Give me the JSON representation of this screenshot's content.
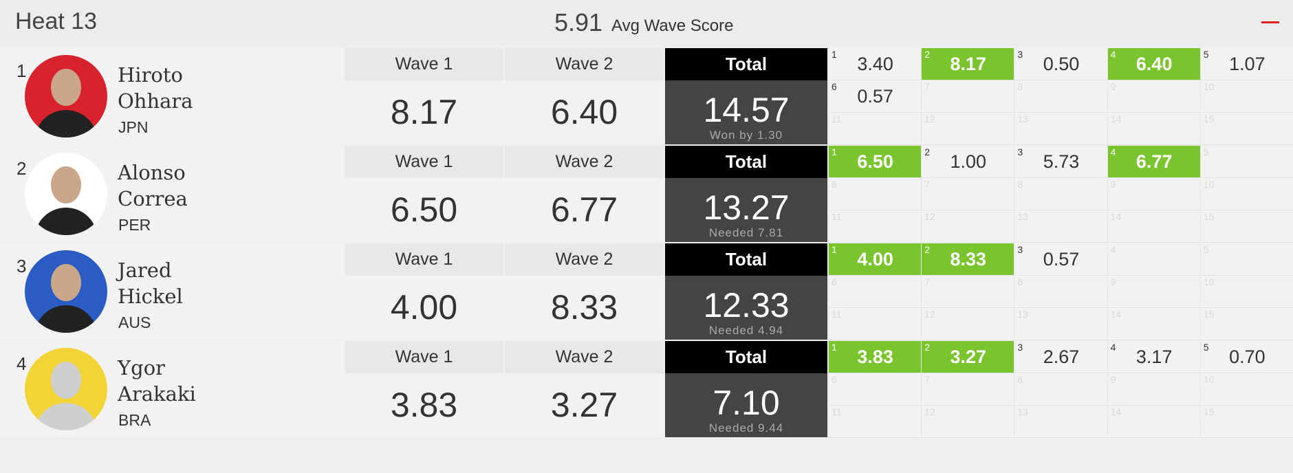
{
  "header": {
    "title": "Heat 13",
    "avg_score": "5.91",
    "avg_label": "Avg Wave Score"
  },
  "column_labels": {
    "wave1": "Wave 1",
    "wave2": "Wave 2",
    "total": "Total"
  },
  "grid_numbers": [
    1,
    2,
    3,
    4,
    5,
    6,
    7,
    8,
    9,
    10,
    11,
    12,
    13,
    14,
    15
  ],
  "surfers": [
    {
      "rank": 1,
      "first_name": "Hiroto",
      "last_name": "Ohhara",
      "country": "JPN",
      "wave1": "8.17",
      "wave2": "6.40",
      "total": "14.57",
      "note": "Won by 1.30",
      "waves": [
        {
          "score": "3.40",
          "counted": false
        },
        {
          "score": "8.17",
          "counted": true
        },
        {
          "score": "0.50",
          "counted": false
        },
        {
          "score": "6.40",
          "counted": true
        },
        {
          "score": "1.07",
          "counted": false
        },
        {
          "score": "0.57",
          "counted": false
        }
      ]
    },
    {
      "rank": 2,
      "first_name": "Alonso",
      "last_name": "Correa",
      "country": "PER",
      "wave1": "6.50",
      "wave2": "6.77",
      "total": "13.27",
      "note": "Needed 7.81",
      "waves": [
        {
          "score": "6.50",
          "counted": true
        },
        {
          "score": "1.00",
          "counted": false
        },
        {
          "score": "5.73",
          "counted": false
        },
        {
          "score": "6.77",
          "counted": true
        }
      ]
    },
    {
      "rank": 3,
      "first_name": "Jared",
      "last_name": "Hickel",
      "country": "AUS",
      "wave1": "4.00",
      "wave2": "8.33",
      "total": "12.33",
      "note": "Needed 4.94",
      "waves": [
        {
          "score": "4.00",
          "counted": true
        },
        {
          "score": "8.33",
          "counted": true
        },
        {
          "score": "0.57",
          "counted": false
        }
      ]
    },
    {
      "rank": 4,
      "first_name": "Ygor",
      "last_name": "Arakaki",
      "country": "BRA",
      "wave1": "3.83",
      "wave2": "3.27",
      "total": "7.10",
      "note": "Needed 9.44",
      "waves": [
        {
          "score": "3.83",
          "counted": true
        },
        {
          "score": "3.27",
          "counted": true
        },
        {
          "score": "2.67",
          "counted": false
        },
        {
          "score": "3.17",
          "counted": false
        },
        {
          "score": "0.70",
          "counted": false
        }
      ]
    }
  ]
}
